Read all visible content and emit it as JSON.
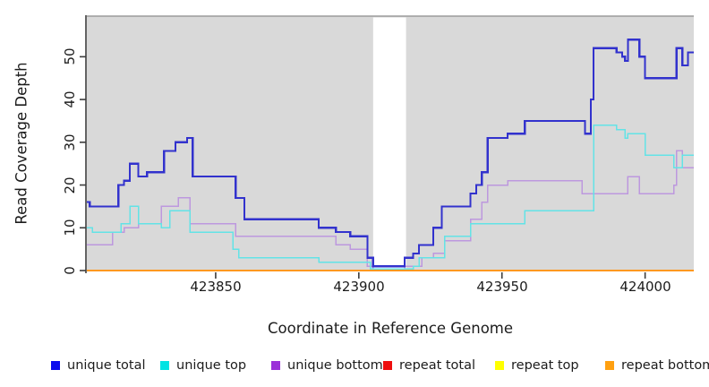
{
  "figure": {
    "plot_background": "#d9d9d9",
    "background": "#ffffff",
    "border_color": "#9b9b9b",
    "axis_color": "#3d3d3d",
    "gap_band": {
      "from": 423905,
      "to": 423916.5,
      "color": "#ffffff"
    },
    "x_axis": {
      "ticks": [
        423850,
        423900,
        423950,
        424000
      ],
      "tick_labels": [
        "423850",
        "423900",
        "423950",
        "424000"
      ]
    },
    "y_axis": {
      "ticks": [
        0,
        10,
        20,
        30,
        40,
        50
      ],
      "tick_labels": [
        "0",
        "10",
        "20",
        "30",
        "40",
        "50"
      ]
    }
  },
  "chart_data": {
    "type": "line",
    "subtype": "step-after",
    "title": "",
    "xlabel": "Coordinate in Reference Genome",
    "ylabel": "Read Coverage Depth",
    "xlim": [
      423805,
      424017
    ],
    "ylim": [
      0,
      59.5
    ],
    "grid": false,
    "legend_position": "bottom",
    "series": [
      {
        "name": "unique total",
        "color": "#3232cd",
        "width": 2.2,
        "z": 6,
        "points": [
          [
            423805,
            16
          ],
          [
            423806,
            15
          ],
          [
            423816,
            20
          ],
          [
            423818,
            21
          ],
          [
            423820,
            25
          ],
          [
            423823,
            22
          ],
          [
            423826,
            23
          ],
          [
            423832,
            28
          ],
          [
            423836,
            30
          ],
          [
            423840,
            31
          ],
          [
            423842,
            22
          ],
          [
            423857,
            17
          ],
          [
            423860,
            12
          ],
          [
            423886,
            10
          ],
          [
            423892,
            9
          ],
          [
            423897,
            8
          ],
          [
            423903,
            3
          ],
          [
            423905,
            1
          ],
          [
            423916,
            3
          ],
          [
            423919,
            4
          ],
          [
            423921,
            6
          ],
          [
            423926,
            10
          ],
          [
            423929,
            15
          ],
          [
            423939,
            18
          ],
          [
            423941,
            20
          ],
          [
            423943,
            23
          ],
          [
            423945,
            31
          ],
          [
            423952,
            32
          ],
          [
            423958,
            35
          ],
          [
            423979,
            32
          ],
          [
            423981,
            40
          ],
          [
            423982,
            52
          ],
          [
            423990,
            51
          ],
          [
            423992,
            50
          ],
          [
            423993,
            49
          ],
          [
            423994,
            54
          ],
          [
            423998,
            50
          ],
          [
            424000,
            45
          ],
          [
            424011,
            52
          ],
          [
            424013,
            48
          ],
          [
            424015,
            51
          ]
        ]
      },
      {
        "name": "unique top",
        "color": "#63e3e6",
        "width": 1.5,
        "z": 5,
        "points": [
          [
            423805,
            10
          ],
          [
            423807,
            9
          ],
          [
            423817,
            11
          ],
          [
            423820,
            15
          ],
          [
            423823,
            11
          ],
          [
            423831,
            10
          ],
          [
            423834,
            14
          ],
          [
            423841,
            9
          ],
          [
            423856,
            5
          ],
          [
            423858,
            3
          ],
          [
            423886,
            2
          ],
          [
            423904,
            0.4
          ],
          [
            423919,
            1
          ],
          [
            423921,
            3
          ],
          [
            423930,
            8
          ],
          [
            423939,
            11
          ],
          [
            423958,
            14
          ],
          [
            423982,
            34
          ],
          [
            423990,
            33
          ],
          [
            423993,
            31
          ],
          [
            423994,
            32
          ],
          [
            424000,
            27
          ],
          [
            424010,
            24
          ],
          [
            424013,
            27
          ]
        ]
      },
      {
        "name": "unique bottom",
        "color": "#bd98de",
        "width": 1.5,
        "z": 4,
        "points": [
          [
            423805,
            6
          ],
          [
            423814,
            9
          ],
          [
            423818,
            10
          ],
          [
            423823,
            11
          ],
          [
            423831,
            15
          ],
          [
            423837,
            17
          ],
          [
            423841,
            11
          ],
          [
            423857,
            8
          ],
          [
            423892,
            6
          ],
          [
            423897,
            5
          ],
          [
            423903,
            1
          ],
          [
            423905,
            0.4
          ],
          [
            423916,
            1
          ],
          [
            423922,
            3
          ],
          [
            423926,
            4
          ],
          [
            423930,
            7
          ],
          [
            423939,
            12
          ],
          [
            423943,
            16
          ],
          [
            423945,
            20
          ],
          [
            423952,
            21
          ],
          [
            423978,
            18
          ],
          [
            423994,
            22
          ],
          [
            423998,
            18
          ],
          [
            424010,
            20
          ],
          [
            424011,
            28
          ],
          [
            424013,
            24
          ]
        ]
      },
      {
        "name": "repeat total",
        "color": "#e00000",
        "width": 1.5,
        "z": 1,
        "points": [
          [
            423805,
            0
          ]
        ]
      },
      {
        "name": "repeat top",
        "color": "#ffff00",
        "width": 1.5,
        "z": 2,
        "points": [
          [
            423805,
            0
          ]
        ]
      },
      {
        "name": "repeat bottom",
        "color": "#ff9820",
        "width": 2,
        "z": 3,
        "points": [
          [
            423805,
            0
          ]
        ]
      }
    ]
  },
  "legend": {
    "items": [
      {
        "label": "unique total",
        "color": "#0d0dee"
      },
      {
        "label": "unique top",
        "color": "#00e3e3"
      },
      {
        "label": "unique bottom",
        "color": "#9b30d9"
      },
      {
        "label": "repeat total",
        "color": "#ee0f0f"
      },
      {
        "label": "repeat top",
        "color": "#ffff00"
      },
      {
        "label": "repeat bottom",
        "color": "#ffa011"
      }
    ]
  }
}
